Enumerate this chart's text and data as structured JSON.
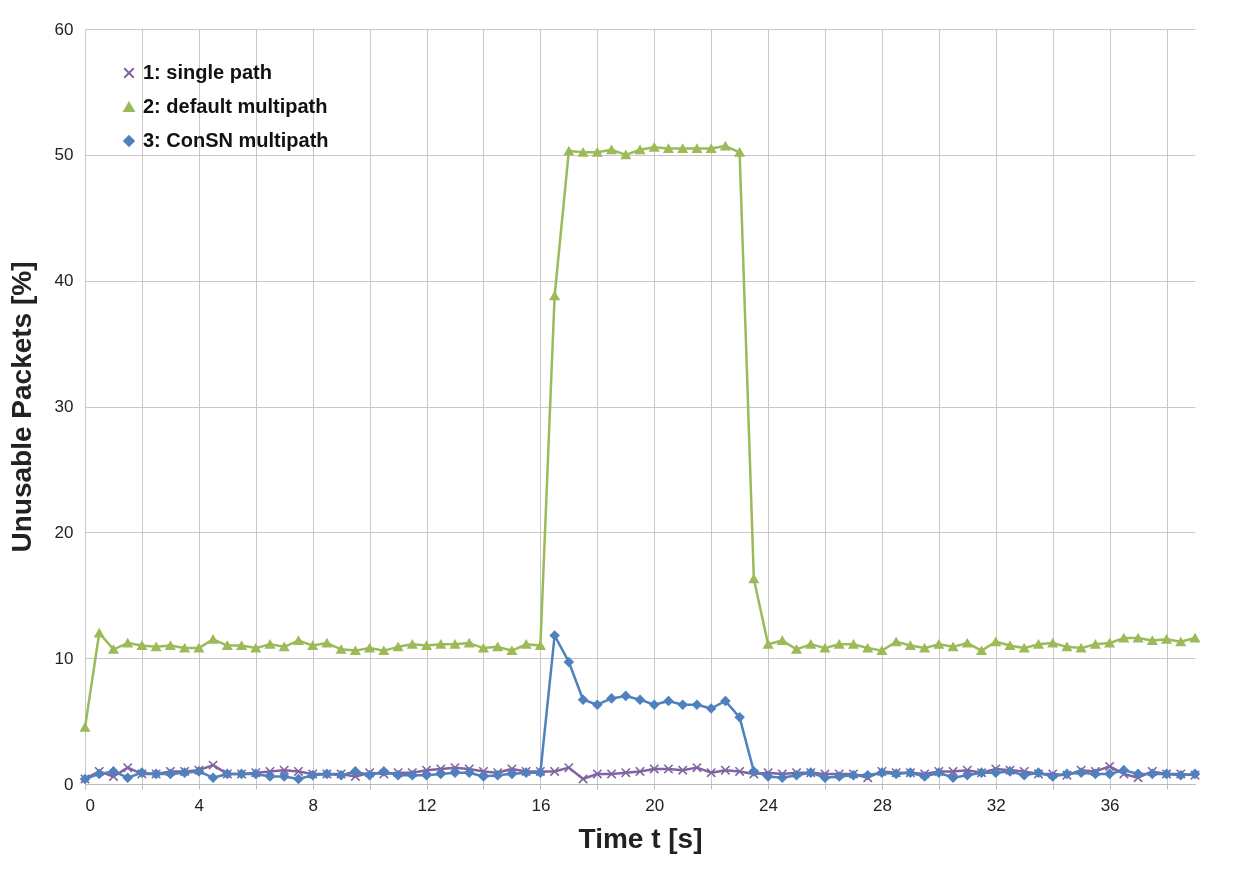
{
  "chart_data": {
    "type": "line",
    "xlabel": "Time t [s]",
    "ylabel": "Unusable Packets [%]",
    "x": [
      0,
      0.5,
      1,
      1.5,
      2,
      2.5,
      3,
      3.5,
      4,
      4.5,
      5,
      5.5,
      6,
      6.5,
      7,
      7.5,
      8,
      8.5,
      9,
      9.5,
      10,
      10.5,
      11,
      11.5,
      12,
      12.5,
      13,
      13.5,
      14,
      14.5,
      15,
      15.5,
      16,
      16.5,
      17,
      17.5,
      18,
      18.5,
      19,
      19.5,
      20,
      20.5,
      21,
      21.5,
      22,
      22.5,
      23,
      23.5,
      24,
      24.5,
      25,
      25.5,
      26,
      26.5,
      27,
      27.5,
      28,
      28.5,
      29,
      29.5,
      30,
      30.5,
      31,
      31.5,
      32,
      32.5,
      33,
      33.5,
      34,
      34.5,
      35,
      35.5,
      36,
      36.5,
      37,
      37.5,
      38,
      38.5,
      39
    ],
    "series": [
      {
        "name": "1: single path",
        "color": "#8064a2",
        "marker": "cross",
        "values": [
          0.4,
          1,
          0.6,
          1.3,
          0.8,
          0.8,
          1,
          1,
          1.1,
          1.5,
          0.8,
          0.8,
          0.9,
          1,
          1.1,
          1,
          0.8,
          0.8,
          0.8,
          0.6,
          0.9,
          0.8,
          0.9,
          0.9,
          1.1,
          1.2,
          1.3,
          1.2,
          1,
          0.9,
          1.2,
          1,
          1,
          1,
          1.3,
          0.4,
          0.8,
          0.8,
          0.9,
          1,
          1.2,
          1.2,
          1.1,
          1.3,
          0.9,
          1.1,
          1,
          0.8,
          0.9,
          0.8,
          0.9,
          0.9,
          0.8,
          0.8,
          0.8,
          0.5,
          1,
          0.9,
          0.9,
          0.8,
          1,
          1,
          1.1,
          0.9,
          1.2,
          1.1,
          1,
          0.8,
          0.8,
          0.7,
          1.1,
          1,
          1.4,
          0.8,
          0.5,
          1,
          0.8,
          0.8,
          0.7
        ]
      },
      {
        "name": "2: default multipath",
        "color": "#9bbb59",
        "marker": "triangle",
        "values": [
          4.5,
          12,
          10.7,
          11.2,
          11,
          10.9,
          11,
          10.8,
          10.8,
          11.5,
          11,
          11,
          10.8,
          11.1,
          10.9,
          11.4,
          11,
          11.2,
          10.7,
          10.6,
          10.8,
          10.6,
          10.9,
          11.1,
          11,
          11.1,
          11.1,
          11.2,
          10.8,
          10.9,
          10.6,
          11.1,
          11,
          38.8,
          50.3,
          50.2,
          50.2,
          50.4,
          50,
          50.4,
          50.6,
          50.5,
          50.5,
          50.5,
          50.5,
          50.7,
          50.2,
          16.3,
          11.1,
          11.4,
          10.7,
          11.1,
          10.8,
          11.1,
          11.1,
          10.8,
          10.6,
          11.3,
          11,
          10.8,
          11.1,
          10.9,
          11.2,
          10.6,
          11.3,
          11,
          10.8,
          11.1,
          11.2,
          10.9,
          10.8,
          11.1,
          11.2,
          11.6,
          11.6,
          11.4,
          11.5,
          11.3,
          11.6
        ]
      },
      {
        "name": "3: ConSN multipath",
        "color": "#4f81bd",
        "marker": "diamond",
        "values": [
          0.4,
          0.8,
          1,
          0.5,
          0.9,
          0.8,
          0.8,
          0.9,
          1,
          0.5,
          0.8,
          0.8,
          0.8,
          0.6,
          0.6,
          0.4,
          0.7,
          0.8,
          0.7,
          1,
          0.7,
          1,
          0.7,
          0.7,
          0.7,
          0.8,
          0.9,
          0.9,
          0.6,
          0.7,
          0.8,
          0.9,
          0.9,
          11.8,
          9.7,
          6.7,
          6.3,
          6.8,
          7,
          6.7,
          6.3,
          6.6,
          6.3,
          6.3,
          6,
          6.6,
          5.3,
          1,
          0.6,
          0.5,
          0.7,
          0.9,
          0.5,
          0.6,
          0.7,
          0.7,
          0.9,
          0.8,
          0.9,
          0.6,
          0.9,
          0.5,
          0.7,
          0.9,
          0.9,
          1,
          0.7,
          0.9,
          0.6,
          0.8,
          0.9,
          0.8,
          0.8,
          1.1,
          0.8,
          0.8,
          0.8,
          0.7,
          0.8
        ]
      }
    ],
    "xlim": [
      0,
      39
    ],
    "xticks": [
      0,
      {
        "value": 2,
        "label": null
      },
      4,
      {
        "value": 6,
        "label": null
      },
      8,
      {
        "value": 10,
        "label": null
      },
      12,
      {
        "value": 14,
        "label": null
      },
      16,
      {
        "value": 18,
        "label": null
      },
      20,
      {
        "value": 22,
        "label": null
      },
      24,
      {
        "value": 26,
        "label": null
      },
      28,
      {
        "value": 30,
        "label": null
      },
      32,
      {
        "value": 34,
        "label": null
      },
      36,
      {
        "value": 38,
        "label": null
      }
    ],
    "ylim": [
      0,
      60
    ],
    "yticks": [
      0,
      10,
      20,
      30,
      40,
      50,
      60
    ],
    "grid": true,
    "legend": "top left",
    "line_style": "solid"
  }
}
